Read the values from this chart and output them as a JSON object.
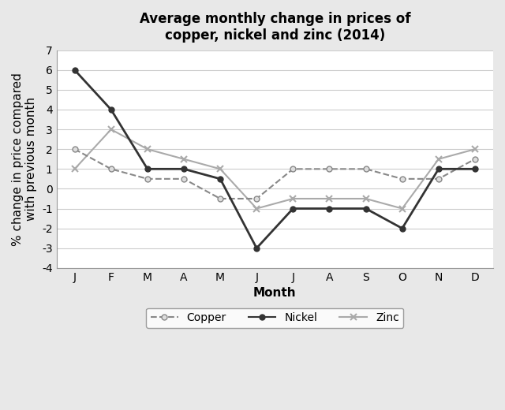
{
  "title": "Average monthly change in prices of\ncopper, nickel and zinc (2014)",
  "xlabel": "Month",
  "ylabel": "% change in price compared\nwith previous month",
  "months": [
    "J",
    "F",
    "M",
    "A",
    "M",
    "J",
    "J",
    "A",
    "S",
    "O",
    "N",
    "D"
  ],
  "copper": [
    2,
    1,
    0.5,
    0.5,
    -0.5,
    -0.5,
    1,
    1,
    1,
    0.5,
    0.5,
    1.5
  ],
  "nickel": [
    6,
    4,
    1,
    1,
    0.5,
    -3,
    -1,
    -1,
    -1,
    -2,
    1,
    1
  ],
  "zinc": [
    1,
    3,
    2,
    1.5,
    1,
    -1,
    -0.5,
    -0.5,
    -0.5,
    -1,
    1.5,
    2
  ],
  "ylim": [
    -4,
    7
  ],
  "yticks": [
    -4,
    -3,
    -2,
    -1,
    0,
    1,
    2,
    3,
    4,
    5,
    6,
    7
  ],
  "bg_color": "#e8e8e8",
  "plot_bg_color": "#ffffff",
  "copper_color": "#888888",
  "nickel_color": "#333333",
  "zinc_color": "#aaaaaa",
  "grid_color": "#cccccc",
  "title_fontsize": 12,
  "label_fontsize": 11,
  "tick_fontsize": 10,
  "legend_fontsize": 10
}
